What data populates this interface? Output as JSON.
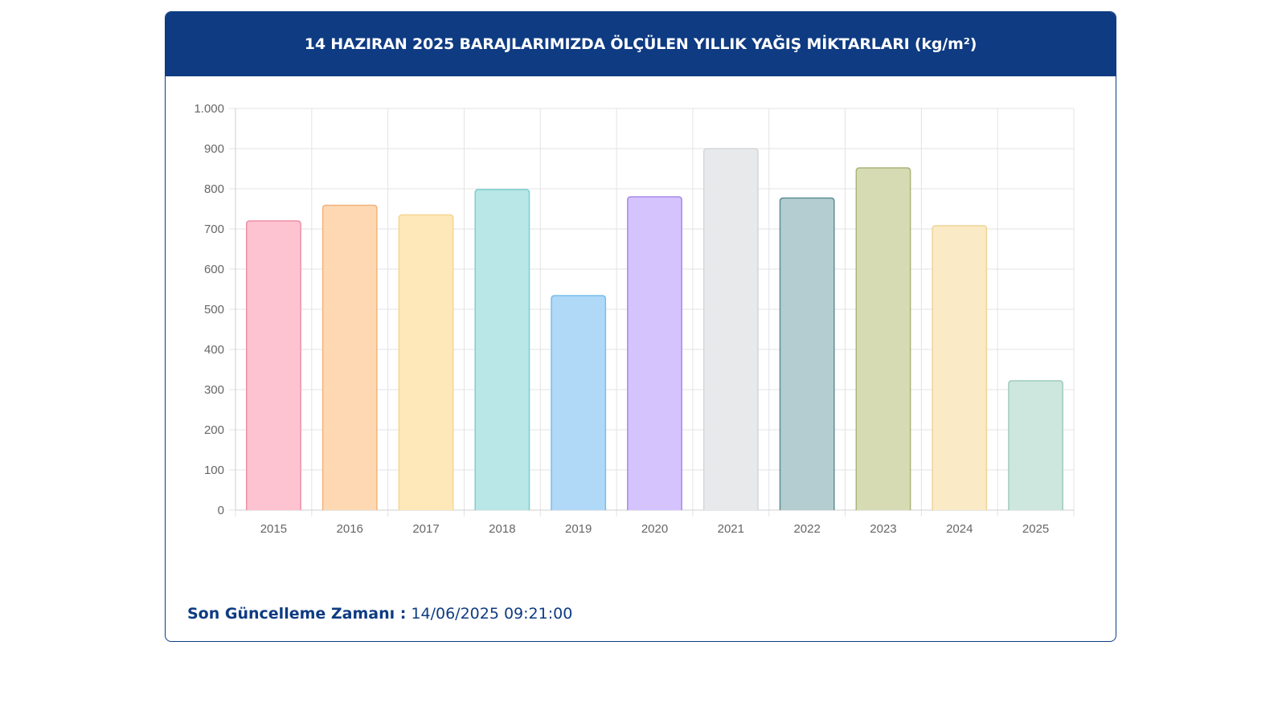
{
  "header": {
    "title": "14 HAZIRAN 2025 BARAJLARIMIZDA ÖLÇÜLEN YILLIK YAĞIŞ MİKTARLARI (kg/m²)"
  },
  "footer": {
    "label": "Son Güncelleme Zamanı :",
    "value": "14/06/2025 09:21:00"
  },
  "chart_data": {
    "type": "bar",
    "title": "14 HAZIRAN 2025 BARAJLARIMIZDA ÖLÇÜLEN YILLIK YAĞIŞ MİKTARLARI (kg/m²)",
    "categories": [
      "2015",
      "2016",
      "2017",
      "2018",
      "2019",
      "2020",
      "2021",
      "2022",
      "2023",
      "2024",
      "2025"
    ],
    "values": [
      720,
      759,
      735,
      798,
      534,
      780,
      900,
      777,
      852,
      708,
      322
    ],
    "ylim": [
      0,
      1000
    ],
    "yticks": [
      0,
      100,
      200,
      300,
      400,
      500,
      600,
      700,
      800,
      900,
      1000
    ],
    "ytick_labels": [
      "0",
      "100",
      "200",
      "300",
      "400",
      "500",
      "600",
      "700",
      "800",
      "900",
      "1.000"
    ],
    "grid": true,
    "legend": "none",
    "xlabel": "",
    "ylabel": "",
    "bar_fills": [
      "#fec3d0",
      "#fdd8b3",
      "#fee8b9",
      "#b9e6e6",
      "#b0d9f7",
      "#d5c3fe",
      "#e8e9eb",
      "#b3cdd0",
      "#d6dbb4",
      "#faeac6",
      "#cde6de"
    ],
    "bar_strokes": [
      "#ef8fa8",
      "#f2b27d",
      "#f5d591",
      "#7ccfcf",
      "#76bdee",
      "#a88ae8",
      "#d4d6d9",
      "#5d8f94",
      "#a9b579",
      "#eed496",
      "#9fcdbd"
    ]
  }
}
